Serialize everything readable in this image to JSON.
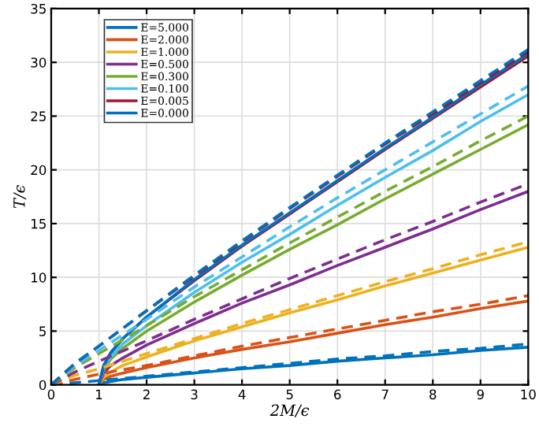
{
  "chart_data": {
    "type": "line",
    "xlabel": "2M/ϵ",
    "ylabel": "T/ϵ",
    "xlim": [
      0,
      10
    ],
    "ylim": [
      0,
      35
    ],
    "xticks": [
      0,
      1,
      2,
      3,
      4,
      5,
      6,
      7,
      8,
      9,
      10
    ],
    "yticks": [
      0,
      5,
      10,
      15,
      20,
      25,
      30,
      35
    ],
    "grid": true,
    "legend": "top left",
    "marker": "none",
    "series": [
      {
        "name": "E=5.000",
        "color": "#0072bd",
        "line_style": "solid",
        "x": [
          1,
          1.1,
          1.25,
          1.5,
          2,
          3,
          4,
          5,
          6,
          7,
          8,
          9,
          10
        ],
        "values": [
          0,
          0.2,
          0.3,
          0.5,
          0.7,
          1.1,
          1.5,
          1.8,
          2.2,
          2.5,
          2.8,
          3.2,
          3.5
        ]
      },
      {
        "name": "E=2.000",
        "color": "#d95319",
        "line_style": "solid",
        "x": [
          1,
          1.1,
          1.25,
          1.5,
          2,
          3,
          4,
          5,
          6,
          7,
          8,
          9,
          10
        ],
        "values": [
          0,
          0.5,
          0.8,
          1.1,
          1.6,
          2.5,
          3.3,
          4.0,
          4.8,
          5.6,
          6.3,
          7.1,
          7.8
        ]
      },
      {
        "name": "E=1.000",
        "color": "#edb120",
        "line_style": "solid",
        "x": [
          1,
          1.1,
          1.25,
          1.5,
          2,
          3,
          4,
          5,
          6,
          7,
          8,
          9,
          10
        ],
        "values": [
          0,
          0.7,
          1.2,
          1.8,
          2.6,
          4.1,
          5.4,
          6.7,
          7.9,
          9.2,
          10.4,
          11.6,
          12.8
        ]
      },
      {
        "name": "E=0.500",
        "color": "#7e2f8e",
        "line_style": "solid",
        "x": [
          1,
          1.1,
          1.25,
          1.5,
          2,
          3,
          4,
          5,
          6,
          7,
          8,
          9,
          10
        ],
        "values": [
          0,
          1.1,
          1.8,
          2.5,
          3.7,
          5.7,
          7.6,
          9.3,
          11.1,
          12.8,
          14.5,
          16.3,
          18.0
        ]
      },
      {
        "name": "E=0.300",
        "color": "#77ac30",
        "line_style": "solid",
        "x": [
          1,
          1.1,
          1.25,
          1.5,
          2,
          3,
          4,
          5,
          6,
          7,
          8,
          9,
          10
        ],
        "values": [
          0,
          1.4,
          2.4,
          3.4,
          5.0,
          7.7,
          10.2,
          12.6,
          14.9,
          17.3,
          19.6,
          21.9,
          24.2
        ]
      },
      {
        "name": "E=0.100",
        "color": "#4dbeee",
        "line_style": "solid",
        "x": [
          1,
          1.1,
          1.25,
          1.5,
          2,
          3,
          4,
          5,
          6,
          7,
          8,
          9,
          10
        ],
        "values": [
          0,
          1.6,
          2.6,
          3.8,
          5.5,
          8.6,
          11.4,
          14.0,
          16.7,
          19.3,
          21.8,
          24.5,
          27.0
        ]
      },
      {
        "name": "E=0.005",
        "color": "#a2142f",
        "line_style": "solid",
        "x": [
          1,
          1.1,
          1.25,
          1.5,
          2,
          3,
          4,
          5,
          6,
          7,
          8,
          9,
          10
        ],
        "values": [
          0,
          1.8,
          3.0,
          4.3,
          6.3,
          9.7,
          12.9,
          15.9,
          18.9,
          21.9,
          24.8,
          27.7,
          30.6
        ]
      },
      {
        "name": "E=0.000",
        "color": "#0072bd",
        "line_style": "solid",
        "x": [
          1,
          1.1,
          1.25,
          1.5,
          2,
          3,
          4,
          5,
          6,
          7,
          8,
          9,
          10
        ],
        "values": [
          0,
          1.8,
          3.0,
          4.3,
          6.3,
          9.8,
          13.0,
          16.0,
          19.0,
          22.0,
          24.9,
          27.9,
          30.8
        ]
      },
      {
        "color": "#0072bd",
        "line_style": "dashed",
        "x": [
          0,
          0.5,
          1,
          2,
          3,
          4,
          5,
          6,
          7,
          8,
          9,
          10
        ],
        "values": [
          0,
          0.2,
          0.4,
          0.8,
          1.2,
          1.6,
          2.0,
          2.4,
          2.7,
          3.1,
          3.4,
          3.8
        ]
      },
      {
        "color": "#d95319",
        "line_style": "dashed",
        "x": [
          0,
          0.5,
          1,
          2,
          3,
          4,
          5,
          6,
          7,
          8,
          9,
          10
        ],
        "values": [
          0,
          0.5,
          1.0,
          1.8,
          2.7,
          3.6,
          4.4,
          5.2,
          6.0,
          6.8,
          7.5,
          8.3
        ]
      },
      {
        "color": "#edb120",
        "line_style": "dashed",
        "x": [
          0,
          0.5,
          1,
          2,
          3,
          4,
          5,
          6,
          7,
          8,
          9,
          10
        ],
        "values": [
          0,
          0.9,
          1.5,
          2.9,
          4.3,
          5.7,
          7.0,
          8.3,
          9.6,
          10.8,
          12.1,
          13.3
        ]
      },
      {
        "color": "#7e2f8e",
        "line_style": "dashed",
        "x": [
          0,
          0.5,
          1,
          2,
          3,
          4,
          5,
          6,
          7,
          8,
          9,
          10
        ],
        "values": [
          0,
          1.2,
          2.2,
          4.1,
          6.1,
          8.0,
          9.9,
          11.7,
          13.5,
          15.2,
          17.0,
          18.7
        ]
      },
      {
        "color": "#77ac30",
        "line_style": "dashed",
        "x": [
          0,
          0.5,
          1,
          2,
          3,
          4,
          5,
          6,
          7,
          8,
          9,
          10
        ],
        "values": [
          0,
          1.6,
          2.9,
          5.5,
          8.2,
          10.7,
          13.2,
          15.6,
          18.0,
          20.3,
          22.7,
          25.0
        ]
      },
      {
        "color": "#4dbeee",
        "line_style": "dashed",
        "x": [
          0,
          0.5,
          1,
          2,
          3,
          4,
          5,
          6,
          7,
          8,
          9,
          10
        ],
        "values": [
          0,
          1.8,
          3.2,
          6.1,
          9.1,
          11.9,
          14.7,
          17.4,
          20.0,
          22.6,
          25.2,
          27.8
        ]
      },
      {
        "color": "#a2142f",
        "line_style": "dashed",
        "x": [
          0,
          0.5,
          1,
          2,
          3,
          4,
          5,
          6,
          7,
          8,
          9,
          10
        ],
        "values": [
          0,
          2.0,
          3.6,
          6.9,
          10.1,
          13.3,
          16.4,
          19.4,
          22.4,
          25.2,
          28.1,
          31.0
        ]
      },
      {
        "color": "#0072bd",
        "line_style": "dashed",
        "x": [
          0,
          0.5,
          1,
          2,
          3,
          4,
          5,
          6,
          7,
          8,
          9,
          10
        ],
        "values": [
          0,
          2.0,
          3.6,
          6.9,
          10.2,
          13.4,
          16.5,
          19.5,
          22.5,
          25.4,
          28.3,
          31.2
        ]
      }
    ]
  }
}
